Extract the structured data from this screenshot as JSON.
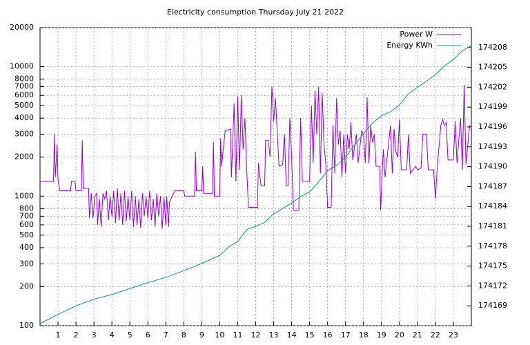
{
  "chart_data": {
    "type": "line",
    "title": "Electricity consumption Thursday July 21 2022",
    "xlim": [
      0,
      24
    ],
    "xticks": [
      1,
      2,
      3,
      4,
      5,
      6,
      7,
      8,
      9,
      10,
      11,
      12,
      13,
      14,
      15,
      16,
      17,
      18,
      19,
      20,
      21,
      22,
      23
    ],
    "ylim": [
      100,
      20000
    ],
    "log_y": true,
    "yticks": [
      100,
      200,
      300,
      400,
      500,
      600,
      700,
      800,
      1000,
      2000,
      3000,
      4000,
      5000,
      6000,
      7000,
      8000,
      10000,
      20000
    ],
    "y2lim": [
      174166,
      174211
    ],
    "y2ticks": [
      174169,
      174172,
      174175,
      174178,
      174181,
      174184,
      174187,
      174190,
      174193,
      174196,
      174199,
      174202,
      174205,
      174208
    ],
    "grid": true,
    "legend": "top-right",
    "series": [
      {
        "name": "Power W",
        "color": "#9400d3",
        "x": [
          0,
          0.75,
          0.8,
          0.85,
          0.95,
          1.0,
          1.1,
          1.7,
          1.75,
          1.95,
          2.0,
          2.3,
          2.35,
          2.4,
          2.7,
          2.75,
          2.85,
          2.95,
          3.05,
          3.15,
          3.2,
          3.3,
          3.4,
          3.5,
          3.6,
          3.7,
          3.8,
          3.9,
          4.0,
          4.1,
          4.2,
          4.3,
          4.4,
          4.5,
          4.6,
          4.7,
          4.8,
          4.9,
          5.0,
          5.1,
          5.2,
          5.3,
          5.4,
          5.5,
          5.6,
          5.7,
          5.8,
          5.9,
          6.0,
          6.1,
          6.2,
          6.3,
          6.4,
          6.5,
          6.6,
          6.7,
          6.8,
          6.9,
          7.0,
          7.05,
          7.15,
          7.2,
          7.5,
          8.0,
          8.05,
          8.6,
          8.65,
          8.7,
          9.0,
          9.05,
          9.1,
          9.6,
          9.65,
          9.7,
          10.0,
          10.05,
          10.1,
          10.3,
          10.6,
          10.65,
          10.8,
          10.9,
          11.0,
          11.1,
          11.2,
          11.3,
          11.4,
          11.5,
          11.6,
          12.1,
          12.15,
          12.3,
          12.5,
          12.55,
          12.7,
          12.8,
          12.9,
          13.0,
          13.1,
          13.3,
          13.5,
          13.6,
          13.7,
          13.8,
          13.9,
          14.0,
          14.1,
          14.4,
          14.5,
          14.6,
          15.0,
          15.1,
          15.2,
          15.3,
          15.4,
          15.5,
          15.6,
          15.7,
          15.8,
          15.9,
          16.0,
          16.2,
          16.3,
          16.4,
          16.5,
          16.6,
          16.7,
          16.8,
          16.9,
          17.0,
          17.1,
          17.2,
          17.3,
          17.4,
          17.6,
          17.7,
          17.9,
          18.0,
          18.1,
          18.2,
          18.3,
          18.4,
          18.5,
          18.6,
          18.7,
          18.9,
          18.95,
          19.1,
          19.2,
          19.4,
          19.5,
          19.6,
          19.7,
          19.8,
          19.9,
          20.0,
          20.1,
          20.4,
          20.5,
          20.6,
          20.9,
          21.0,
          21.2,
          21.3,
          21.5,
          21.6,
          21.9,
          22.0,
          22.1,
          22.3,
          22.4,
          22.5,
          22.6,
          22.7,
          23.0,
          23.1,
          23.2,
          23.4,
          23.5,
          23.6,
          23.7,
          23.9,
          24.0
        ],
        "values": [
          1300,
          1300,
          3000,
          1400,
          2500,
          1350,
          1100,
          1100,
          1300,
          1300,
          1100,
          1100,
          2700,
          1150,
          1150,
          680,
          1050,
          680,
          1000,
          1050,
          600,
          950,
          580,
          1050,
          950,
          1100,
          650,
          1000,
          700,
          1100,
          620,
          1150,
          650,
          1050,
          600,
          1100,
          640,
          1000,
          650,
          1100,
          580,
          1000,
          600,
          950,
          570,
          1050,
          700,
          1000,
          680,
          1100,
          650,
          950,
          580,
          1050,
          700,
          1000,
          560,
          980,
          600,
          1000,
          580,
          900,
          1100,
          1100,
          1000,
          1000,
          2200,
          1100,
          1100,
          1700,
          1050,
          1050,
          2600,
          1000,
          1000,
          2800,
          1700,
          3200,
          3300,
          1400,
          5200,
          1300,
          5900,
          1600,
          6000,
          2300,
          4000,
          1600,
          820,
          820,
          1800,
          1200,
          1200,
          2700,
          2700,
          2000,
          7000,
          3800,
          5700,
          1700,
          1750,
          3000,
          1200,
          1200,
          4000,
          2000,
          780,
          780,
          4000,
          1300,
          1300,
          5000,
          1800,
          6500,
          3000,
          7000,
          1500,
          6300,
          2500,
          1800,
          820,
          820,
          3500,
          1500,
          5700,
          2500,
          3200,
          1400,
          3000,
          1500,
          3000,
          2300,
          3700,
          1900,
          3000,
          1800,
          3200,
          3000,
          1800,
          5800,
          1800,
          3500,
          2600,
          3000,
          1700,
          1700,
          780,
          2300,
          1400,
          2600,
          3500,
          1500,
          3300,
          2200,
          2000,
          3900,
          1600,
          1600,
          3000,
          1500,
          1700,
          1600,
          1650,
          3000,
          3000,
          1600,
          1600,
          950,
          1650,
          3500,
          3900,
          3500,
          3700,
          1900,
          1900,
          3800,
          1800,
          4000,
          1600,
          7200,
          1750,
          3500,
          3400
        ]
      },
      {
        "name": "Energy KWh",
        "color": "#009e73",
        "axis": "y2",
        "x": [
          0,
          1,
          2,
          3,
          4,
          5,
          6,
          7,
          8,
          9,
          10,
          10.5,
          11,
          11.5,
          12,
          12.5,
          13,
          13.5,
          14,
          14.5,
          15,
          15.5,
          16,
          16.5,
          17,
          17.5,
          18,
          18.5,
          19,
          19.5,
          20,
          20.5,
          21,
          21.5,
          22,
          22.5,
          23,
          23.5,
          24
        ],
        "values": [
          174166.3,
          174167.7,
          174169.0,
          174170.0,
          174170.7,
          174171.6,
          174172.5,
          174173.3,
          174174.3,
          174175.4,
          174176.6,
          174177.9,
          174178.7,
          174180.5,
          174181.0,
          174181.6,
          174182.9,
          174183.7,
          174184.5,
          174185.5,
          174186.2,
          174187.7,
          174189.4,
          174190.2,
          174191.4,
          174193.3,
          174195.0,
          174196.6,
          174197.7,
          174198.3,
          174199.3,
          174201.0,
          174202.0,
          174202.9,
          174203.9,
          174205.2,
          174206.2,
          174207.5,
          174208.3
        ]
      }
    ]
  }
}
